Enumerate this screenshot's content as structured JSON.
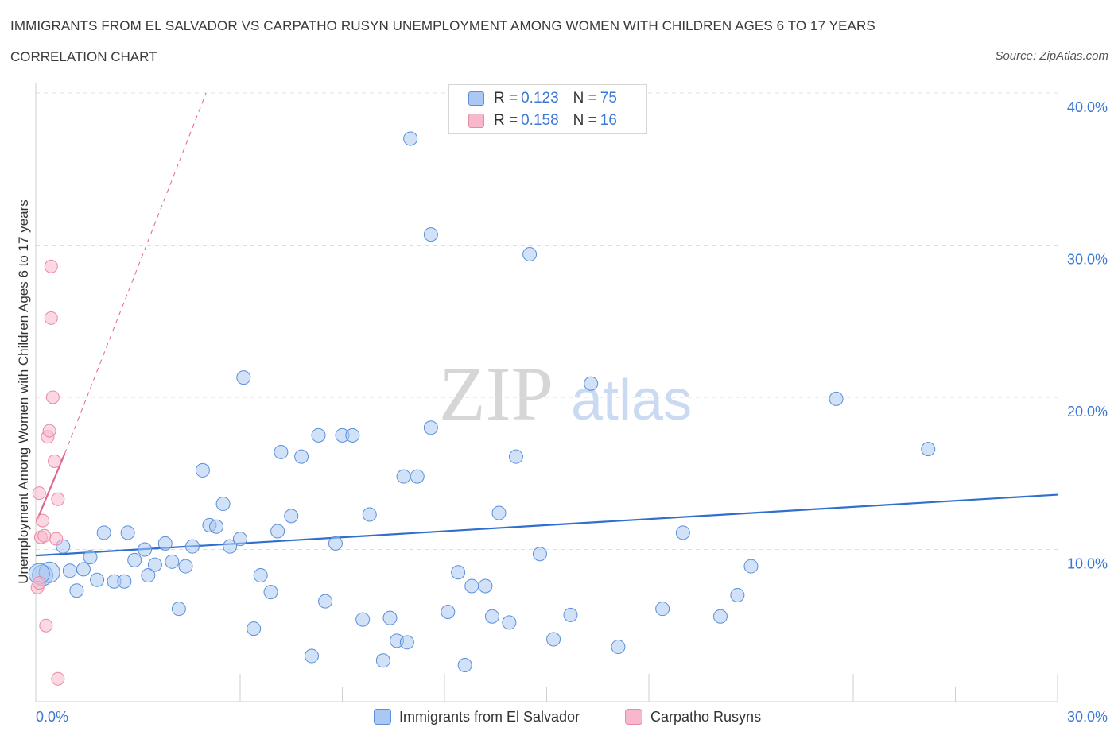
{
  "header": {
    "title": "IMMIGRANTS FROM EL SALVADOR VS CARPATHO RUSYN UNEMPLOYMENT AMONG WOMEN WITH CHILDREN AGES 6 TO 17 YEARS",
    "subtitle": "CORRELATION CHART",
    "source": "Source: ZipAtlas.com"
  },
  "watermark": {
    "zip": "ZIP",
    "atlas": "atlas"
  },
  "legend": {
    "rows": [
      {
        "r_label": "R = ",
        "r_value": "0.123",
        "n_label": "N = ",
        "n_value": "75",
        "color": "#aac8f2"
      },
      {
        "r_label": "R = ",
        "r_value": "0.158",
        "n_label": "N = ",
        "n_value": "16",
        "color": "#f7b8cb"
      }
    ]
  },
  "bottom_legend": {
    "items": [
      {
        "label": "Immigrants from El Salvador",
        "color": "#aac8f2"
      },
      {
        "label": "Carpatho Rusyns",
        "color": "#f7b8cb"
      }
    ]
  },
  "chart_data": {
    "type": "scatter",
    "title": "IMMIGRANTS FROM EL SALVADOR VS CARPATHO RUSYN UNEMPLOYMENT AMONG WOMEN WITH CHILDREN AGES 6 TO 17 YEARS",
    "xlabel": "",
    "ylabel": "Unemployment Among Women with Children Ages 6 to 17 years",
    "xlim": [
      0,
      30
    ],
    "ylim": [
      0,
      40
    ],
    "x_tick_labels": [
      "0.0%",
      "30.0%"
    ],
    "y_ticks": [
      10,
      20,
      30,
      40
    ],
    "y_tick_labels": [
      "10.0%",
      "20.0%",
      "30.0%",
      "40.0%"
    ],
    "grid": true,
    "legend_position": "top-center",
    "colors": {
      "blue_fill": "#aac8f2",
      "blue_stroke": "#5b8fd9",
      "blue_line": "#2f6fce",
      "pink_fill": "#f7b8cb",
      "pink_stroke": "#e78aa6",
      "pink_line": "#e0678f"
    },
    "series": [
      {
        "name": "Immigrants from El Salvador",
        "R": 0.123,
        "N": 75,
        "trend": {
          "x": [
            0,
            30
          ],
          "y": [
            9.6,
            13.6
          ]
        },
        "points": [
          {
            "x": 0.2,
            "y": 8.3
          },
          {
            "x": 0.4,
            "y": 8.5
          },
          {
            "x": 0.8,
            "y": 10.2
          },
          {
            "x": 1.0,
            "y": 8.6
          },
          {
            "x": 1.2,
            "y": 7.3
          },
          {
            "x": 1.4,
            "y": 8.7
          },
          {
            "x": 1.6,
            "y": 9.5
          },
          {
            "x": 1.8,
            "y": 8.0
          },
          {
            "x": 2.0,
            "y": 11.1
          },
          {
            "x": 2.3,
            "y": 7.9
          },
          {
            "x": 2.6,
            "y": 7.9
          },
          {
            "x": 2.7,
            "y": 11.1
          },
          {
            "x": 2.9,
            "y": 9.3
          },
          {
            "x": 3.2,
            "y": 10.0
          },
          {
            "x": 3.3,
            "y": 8.3
          },
          {
            "x": 3.5,
            "y": 9.0
          },
          {
            "x": 3.8,
            "y": 10.4
          },
          {
            "x": 4.0,
            "y": 9.2
          },
          {
            "x": 4.2,
            "y": 6.1
          },
          {
            "x": 4.4,
            "y": 8.9
          },
          {
            "x": 4.6,
            "y": 10.2
          },
          {
            "x": 4.9,
            "y": 15.2
          },
          {
            "x": 5.1,
            "y": 11.6
          },
          {
            "x": 5.3,
            "y": 11.5
          },
          {
            "x": 5.5,
            "y": 13.0
          },
          {
            "x": 5.7,
            "y": 10.2
          },
          {
            "x": 6.0,
            "y": 10.7
          },
          {
            "x": 6.1,
            "y": 21.3
          },
          {
            "x": 6.4,
            "y": 4.8
          },
          {
            "x": 6.6,
            "y": 8.3
          },
          {
            "x": 6.9,
            "y": 7.2
          },
          {
            "x": 7.1,
            "y": 11.2
          },
          {
            "x": 7.2,
            "y": 16.4
          },
          {
            "x": 7.5,
            "y": 12.2
          },
          {
            "x": 7.8,
            "y": 16.1
          },
          {
            "x": 8.1,
            "y": 3.0
          },
          {
            "x": 8.3,
            "y": 17.5
          },
          {
            "x": 8.5,
            "y": 6.6
          },
          {
            "x": 8.8,
            "y": 10.4
          },
          {
            "x": 9.0,
            "y": 17.5
          },
          {
            "x": 9.3,
            "y": 17.5
          },
          {
            "x": 9.6,
            "y": 5.4
          },
          {
            "x": 9.8,
            "y": 12.3
          },
          {
            "x": 10.2,
            "y": 2.7
          },
          {
            "x": 10.4,
            "y": 5.5
          },
          {
            "x": 10.6,
            "y": 4.0
          },
          {
            "x": 10.8,
            "y": 14.8
          },
          {
            "x": 10.9,
            "y": 3.9
          },
          {
            "x": 11.2,
            "y": 14.8
          },
          {
            "x": 11.0,
            "y": 37.0
          },
          {
            "x": 11.6,
            "y": 18.0
          },
          {
            "x": 11.6,
            "y": 30.7
          },
          {
            "x": 12.1,
            "y": 5.9
          },
          {
            "x": 12.4,
            "y": 8.5
          },
          {
            "x": 12.6,
            "y": 2.4
          },
          {
            "x": 12.8,
            "y": 7.6
          },
          {
            "x": 13.2,
            "y": 7.6
          },
          {
            "x": 13.4,
            "y": 5.6
          },
          {
            "x": 13.6,
            "y": 12.4
          },
          {
            "x": 13.9,
            "y": 5.2
          },
          {
            "x": 14.1,
            "y": 16.1
          },
          {
            "x": 14.5,
            "y": 29.4
          },
          {
            "x": 14.8,
            "y": 9.7
          },
          {
            "x": 15.2,
            "y": 4.1
          },
          {
            "x": 15.7,
            "y": 5.7
          },
          {
            "x": 16.3,
            "y": 20.9
          },
          {
            "x": 17.1,
            "y": 3.6
          },
          {
            "x": 18.4,
            "y": 6.1
          },
          {
            "x": 19.0,
            "y": 11.1
          },
          {
            "x": 20.1,
            "y": 5.6
          },
          {
            "x": 20.6,
            "y": 7.0
          },
          {
            "x": 21.0,
            "y": 8.9
          },
          {
            "x": 23.5,
            "y": 19.9
          },
          {
            "x": 26.2,
            "y": 16.6
          },
          {
            "x": 0.1,
            "y": 8.4
          }
        ]
      },
      {
        "name": "Carpatho Rusyns",
        "R": 0.158,
        "N": 16,
        "trend_solid": {
          "x": [
            0.05,
            0.85
          ],
          "y": [
            12.0,
            16.3
          ]
        },
        "trend_dashed": {
          "x": [
            0.85,
            5.0
          ],
          "y": [
            16.3,
            40.0
          ]
        },
        "points": [
          {
            "x": 0.05,
            "y": 7.5
          },
          {
            "x": 0.1,
            "y": 7.8
          },
          {
            "x": 0.15,
            "y": 10.8
          },
          {
            "x": 0.2,
            "y": 11.9
          },
          {
            "x": 0.1,
            "y": 13.7
          },
          {
            "x": 0.3,
            "y": 5.0
          },
          {
            "x": 0.35,
            "y": 17.4
          },
          {
            "x": 0.4,
            "y": 17.8
          },
          {
            "x": 0.45,
            "y": 28.6
          },
          {
            "x": 0.45,
            "y": 25.2
          },
          {
            "x": 0.5,
            "y": 20.0
          },
          {
            "x": 0.55,
            "y": 15.8
          },
          {
            "x": 0.6,
            "y": 10.7
          },
          {
            "x": 0.65,
            "y": 13.3
          },
          {
            "x": 0.65,
            "y": 1.5
          },
          {
            "x": 0.25,
            "y": 10.9
          }
        ]
      }
    ]
  }
}
